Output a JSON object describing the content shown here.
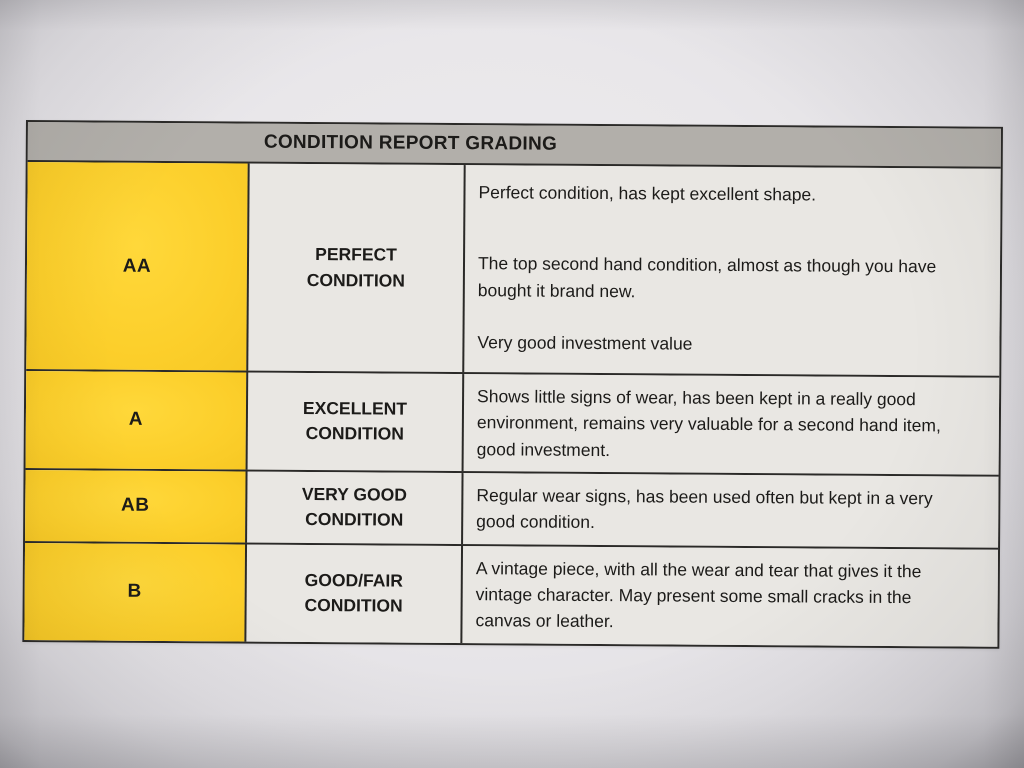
{
  "table": {
    "title": "CONDITION REPORT GRADING",
    "rows": [
      {
        "code": "AA",
        "name": "PERFECT\nCONDITION",
        "paragraphs": [
          "Perfect condition, has kept excellent shape.",
          "The top second hand condition, almost as though you have bought it brand new.",
          "Very good investment value"
        ]
      },
      {
        "code": "A",
        "name": "EXCELLENT\nCONDITION",
        "paragraphs": [
          "Shows little signs of wear, has been kept in a really good environment, remains very valuable for a second hand item, good investment."
        ]
      },
      {
        "code": "AB",
        "name": "VERY GOOD\nCONDITION",
        "paragraphs": [
          "Regular wear signs, has been used often but kept in a very good condition."
        ]
      },
      {
        "code": "B",
        "name": "GOOD/FAIR\nCONDITION",
        "paragraphs": [
          "A vintage piece, with all the wear and tear that gives it the vintage character. May present some small cracks in the canvas or leather."
        ]
      }
    ]
  },
  "colors": {
    "grade_column": "#fccf2b",
    "header_bar": "#b2afaa",
    "cell_background": "#e9e7e3",
    "border": "#2b2a28",
    "text": "#1c1b19"
  }
}
